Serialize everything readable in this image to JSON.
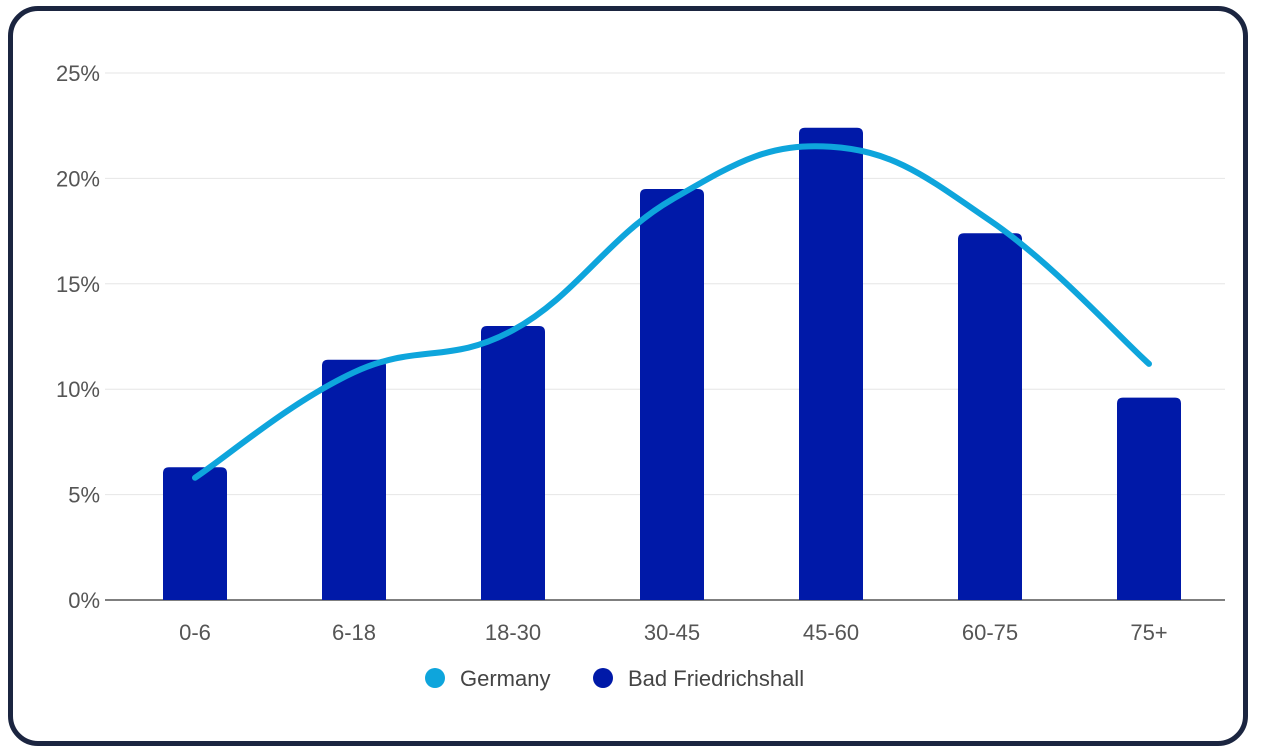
{
  "chart_data": {
    "type": "bar",
    "categories": [
      "0-6",
      "6-18",
      "18-30",
      "30-45",
      "45-60",
      "60-75",
      "75+"
    ],
    "series": [
      {
        "name": "Bad Friedrichshall",
        "type": "bar",
        "color": "#0019a8",
        "values": [
          6.3,
          11.4,
          13.0,
          19.5,
          22.4,
          17.4,
          9.6
        ]
      },
      {
        "name": "Germany",
        "type": "line",
        "color": "#0ea5dc",
        "values": [
          5.8,
          10.8,
          12.8,
          19.0,
          21.5,
          18.0,
          11.2
        ]
      }
    ],
    "y_ticks": [
      "0%",
      "5%",
      "10%",
      "15%",
      "20%",
      "25%"
    ],
    "ylim": [
      0,
      25
    ],
    "grid": true,
    "legend_position": "bottom",
    "legend": [
      "Germany",
      "Bad Friedrichshall"
    ]
  },
  "colors": {
    "frame_border": "#1b2540",
    "grid": "#e6e6e6",
    "axis": "#555555"
  }
}
